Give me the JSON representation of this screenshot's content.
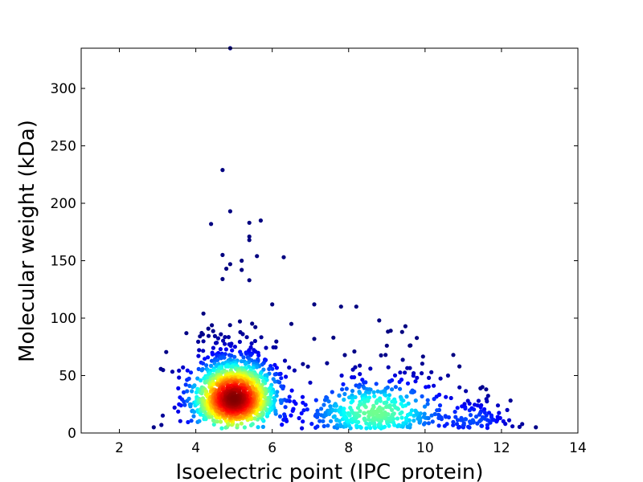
{
  "chart_data": {
    "type": "scatter",
    "xlabel": "Isoelectric point (IPC_protein)",
    "ylabel": "Molecular weight (kDa)",
    "xlim": [
      1,
      14
    ],
    "ylim": [
      0,
      335
    ],
    "xticks": [
      2,
      4,
      6,
      8,
      10,
      12,
      14
    ],
    "yticks": [
      0,
      50,
      100,
      150,
      200,
      250,
      300
    ],
    "grid": false,
    "legend": "none",
    "color_scale": "jet (point density: blue low, red high)",
    "clusters": [
      {
        "x_center": 5.0,
        "y_center": 30,
        "x_spread": 0.55,
        "y_spread": 16,
        "count": 1400
      },
      {
        "x_center": 8.7,
        "y_center": 18,
        "x_spread": 0.9,
        "y_spread": 14,
        "count": 420
      },
      {
        "x_center": 11.3,
        "y_center": 12,
        "x_spread": 0.5,
        "y_spread": 8,
        "count": 90
      }
    ],
    "outliers": [
      {
        "x": 4.9,
        "y": 335
      },
      {
        "x": 4.7,
        "y": 229
      },
      {
        "x": 4.9,
        "y": 193
      },
      {
        "x": 4.4,
        "y": 182
      },
      {
        "x": 5.7,
        "y": 185
      },
      {
        "x": 5.4,
        "y": 183
      },
      {
        "x": 5.4,
        "y": 171
      },
      {
        "x": 5.4,
        "y": 168
      },
      {
        "x": 4.7,
        "y": 155
      },
      {
        "x": 5.6,
        "y": 154
      },
      {
        "x": 6.3,
        "y": 153
      },
      {
        "x": 5.2,
        "y": 150
      },
      {
        "x": 4.9,
        "y": 147
      },
      {
        "x": 4.8,
        "y": 143
      },
      {
        "x": 5.2,
        "y": 142
      },
      {
        "x": 5.4,
        "y": 133
      },
      {
        "x": 4.7,
        "y": 134
      },
      {
        "x": 6.0,
        "y": 112
      },
      {
        "x": 7.1,
        "y": 112
      },
      {
        "x": 7.8,
        "y": 110
      },
      {
        "x": 8.2,
        "y": 110
      },
      {
        "x": 8.8,
        "y": 98
      },
      {
        "x": 9.1,
        "y": 89
      },
      {
        "x": 9.4,
        "y": 88
      },
      {
        "x": 6.5,
        "y": 95
      },
      {
        "x": 4.2,
        "y": 104
      },
      {
        "x": 7.6,
        "y": 83
      },
      {
        "x": 7.1,
        "y": 82
      },
      {
        "x": 9.6,
        "y": 76
      },
      {
        "x": 9.0,
        "y": 76
      },
      {
        "x": 10.9,
        "y": 58
      },
      {
        "x": 10.6,
        "y": 50
      },
      {
        "x": 11.5,
        "y": 40
      },
      {
        "x": 12.9,
        "y": 5
      },
      {
        "x": 3.1,
        "y": 7
      },
      {
        "x": 2.9,
        "y": 5
      },
      {
        "x": 12.1,
        "y": 8
      },
      {
        "x": 11.9,
        "y": 14
      },
      {
        "x": 11.4,
        "y": 28
      },
      {
        "x": 11.6,
        "y": 38
      },
      {
        "x": 10.1,
        "y": 48
      },
      {
        "x": 9.7,
        "y": 52
      }
    ]
  }
}
